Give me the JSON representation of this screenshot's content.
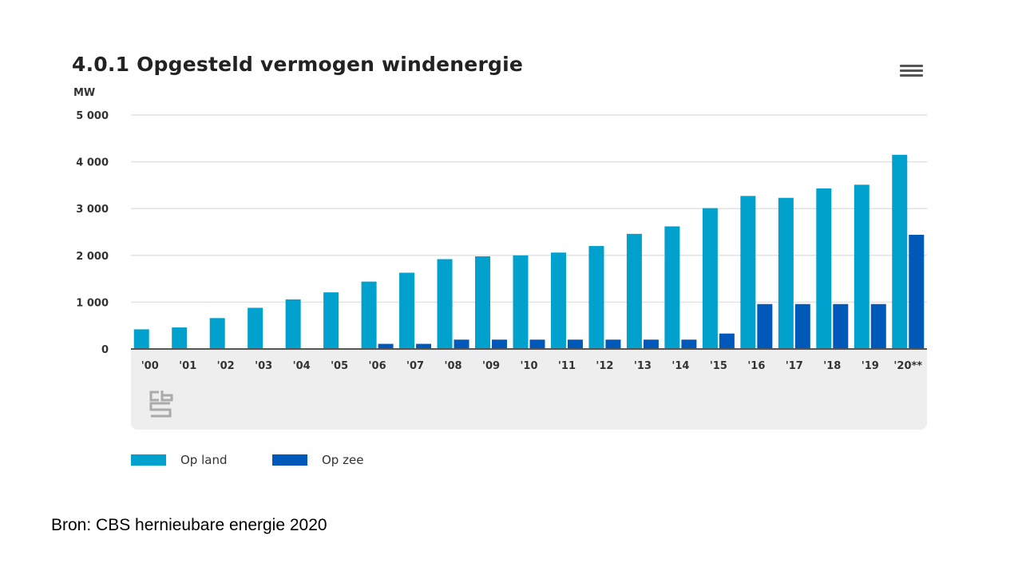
{
  "chart_data": {
    "type": "bar",
    "title": "4.0.1 Opgesteld vermogen windenergie",
    "ylabel": "MW",
    "xlabel": "",
    "ylim": [
      0,
      5000
    ],
    "yticks": [
      0,
      1000,
      2000,
      3000,
      4000,
      5000
    ],
    "ytick_labels": [
      "0",
      "1 000",
      "2 000",
      "3 000",
      "4 000",
      "5 000"
    ],
    "grid": true,
    "legend_position": "bottom-left",
    "categories": [
      "'00",
      "'01",
      "'02",
      "'03",
      "'04",
      "'05",
      "'06",
      "'07",
      "'08",
      "'09",
      "'10",
      "'11",
      "'12",
      "'13",
      "'14",
      "'15",
      "'16",
      "'17",
      "'18",
      "'19",
      "'20**"
    ],
    "series": [
      {
        "name": "Op land",
        "color": "#00a1cd",
        "values": [
          420,
          460,
          660,
          880,
          1060,
          1210,
          1440,
          1630,
          1920,
          1980,
          2000,
          2060,
          2200,
          2460,
          2620,
          3010,
          3270,
          3230,
          3430,
          3510,
          4150
        ]
      },
      {
        "name": "Op zee",
        "color": "#0058b8",
        "values": [
          0,
          0,
          0,
          0,
          0,
          0,
          110,
          110,
          200,
          200,
          200,
          200,
          200,
          200,
          200,
          330,
          960,
          960,
          960,
          960,
          2440
        ]
      }
    ]
  },
  "menu_icon": "hamburger-menu-icon",
  "logo": "cbs-logo",
  "source": "Bron: CBS hernieubare energie 2020"
}
